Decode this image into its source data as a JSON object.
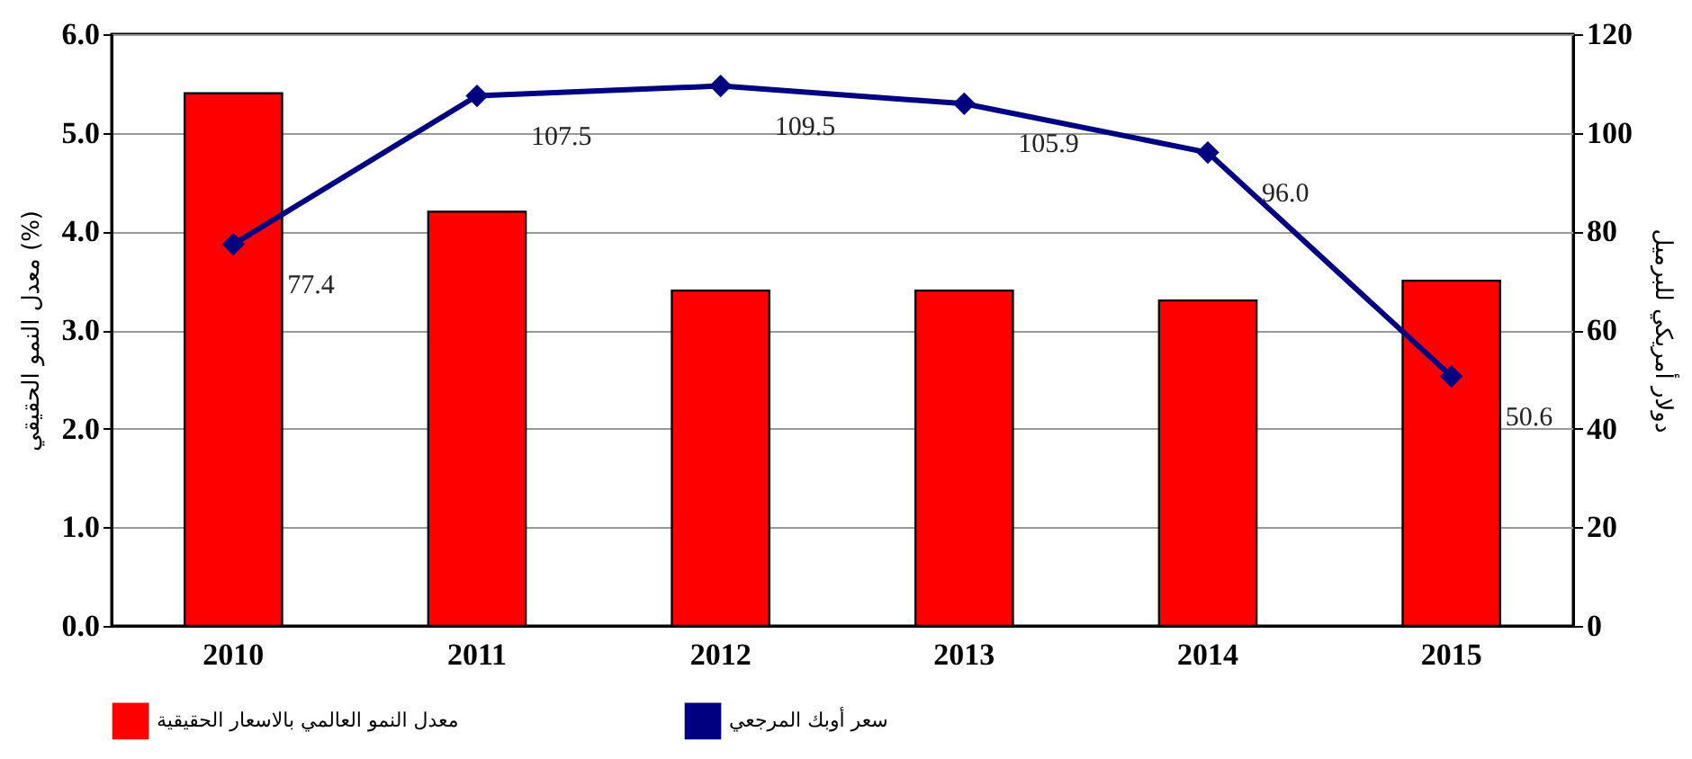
{
  "chart_data": {
    "type": "bar",
    "categories": [
      "2010",
      "2011",
      "2012",
      "2013",
      "2014",
      "2015"
    ],
    "ylabel": "معدل النمو الحقيقي (%)",
    "y2label": "دولار أمريكي للبرميل",
    "series": [
      {
        "name": "معدل النمو العالمي بالاسعار الحقيقية",
        "color": "#ff0000",
        "values": [
          5.4,
          4.2,
          3.4,
          3.4,
          3.3,
          3.5
        ]
      },
      {
        "name": "سعر أوبك المرجعي",
        "type": "line",
        "axis": "y2",
        "color": "#000080",
        "marker": "diamond",
        "values": [
          77.4,
          107.5,
          109.5,
          105.9,
          96.0,
          50.6
        ],
        "value_labels": [
          "77.4",
          "107.5",
          "109.5",
          "105.9",
          "96.0",
          "50.6"
        ]
      }
    ],
    "ylim": [
      0,
      6
    ],
    "yticks": [
      {
        "value": 0,
        "label": "0.0"
      },
      {
        "value": 1,
        "label": "1.0"
      },
      {
        "value": 2,
        "label": "2.0"
      },
      {
        "value": 3,
        "label": "3.0"
      },
      {
        "value": 4,
        "label": "4.0"
      },
      {
        "value": 5,
        "label": "5.0"
      },
      {
        "value": 6,
        "label": "6.0"
      }
    ],
    "y2lim": [
      0,
      120
    ],
    "y2ticks": [
      0,
      20,
      40,
      60,
      80,
      100,
      120
    ],
    "grid": "y",
    "legend": "bottom"
  }
}
